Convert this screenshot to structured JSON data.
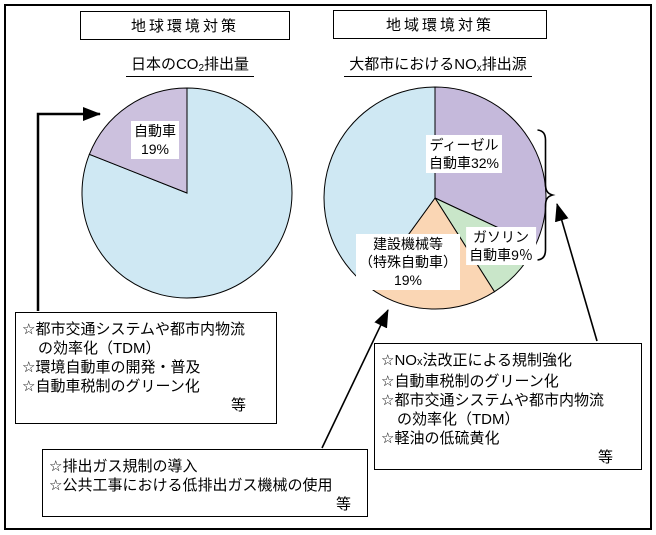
{
  "headers": {
    "left": {
      "box_label": "地球環境対策"
    },
    "right": {
      "box_label": "地域環境対策"
    }
  },
  "subtitles": {
    "left": {
      "pre": "日本のCO",
      "sub": "2",
      "post": "排出量"
    },
    "right": {
      "pre": "大都市におけるNO",
      "sub": "x",
      "post": "排出源"
    }
  },
  "chart_data": [
    {
      "type": "pie",
      "title": "日本のCO2排出量",
      "start_angle_deg": 0,
      "direction": "clockwise",
      "slices": [
        {
          "label": "",
          "value": 81,
          "color": "#cfe8f3"
        },
        {
          "label": "自動車",
          "value": 19,
          "color": "#ccc1de",
          "label_box_lines": [
            "自動車",
            "19%"
          ]
        }
      ]
    },
    {
      "type": "pie",
      "title": "大都市におけるNOx排出源",
      "start_angle_deg": 0,
      "direction": "clockwise",
      "slices": [
        {
          "label": "ディーゼル自動車",
          "value": 32,
          "color": "#c5b9db",
          "label_box_lines": [
            "ディーゼル",
            "自動車32%"
          ]
        },
        {
          "label": "ガソリン自動車",
          "value": 9,
          "color": "#c9e6c9",
          "label_box_lines": [
            "ガソリン",
            "自動車9％"
          ]
        },
        {
          "label": "建設機械等（特殊自動車）",
          "value": 19,
          "color": "#fad6b4",
          "label_box_lines": [
            "建設機械等",
            "（特殊自動車）",
            "19%"
          ]
        },
        {
          "label": "",
          "value": 40,
          "color": "#cfe8f3"
        }
      ]
    }
  ],
  "measure_boxes": {
    "left": {
      "lines": [
        {
          "text": "☆都市交通システムや都市内物流"
        },
        {
          "text": "の効率化（TDM）"
        },
        {
          "text": "☆環境自動車の開発・普及"
        },
        {
          "text": "☆自動車税制のグリーン化"
        }
      ],
      "etc": "等"
    },
    "middle": {
      "lines": [
        {
          "text": "☆排出ガス規制の導入"
        },
        {
          "text": "☆公共工事における低排出ガス機械の使用"
        }
      ],
      "etc": "等"
    },
    "right": {
      "line1": {
        "pre": "☆NO",
        "sub": "x",
        "post": "法改正による規制強化"
      },
      "lines": [
        {
          "text": "☆自動車税制のグリーン化"
        },
        {
          "text": "☆都市交通システムや都市内物流"
        },
        {
          "text": "の効率化（TDM）"
        },
        {
          "text": "☆軽油の低硫黄化"
        }
      ],
      "etc": "等"
    }
  }
}
